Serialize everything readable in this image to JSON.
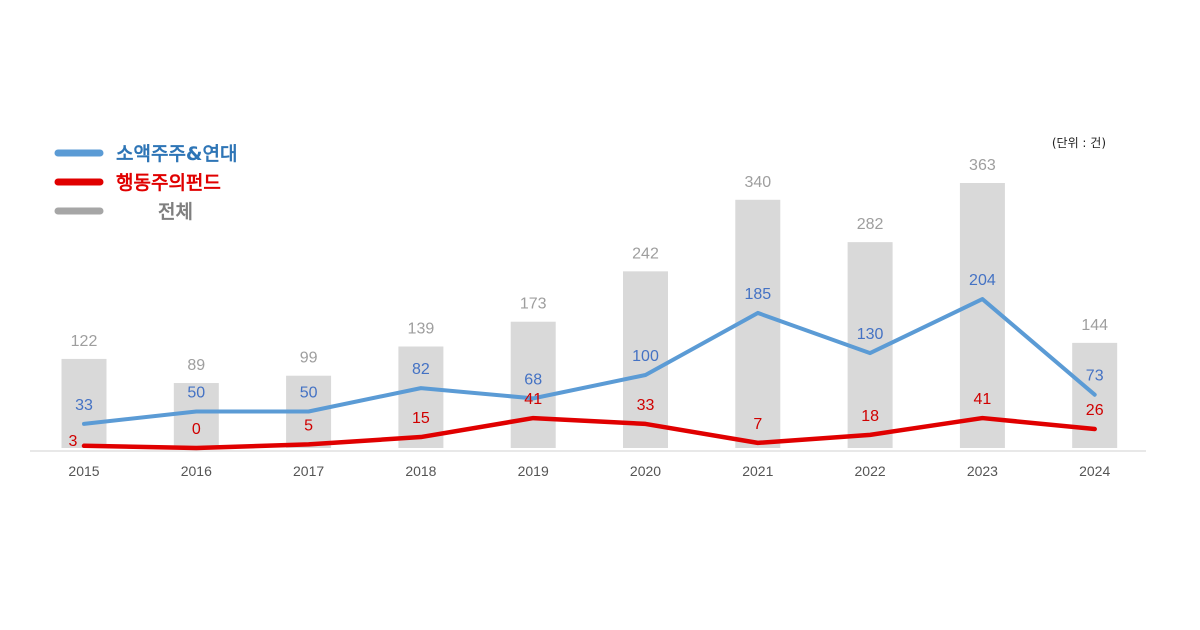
{
  "chart_data": {
    "type": "bar+line",
    "unit_label": "(단위 : 건)",
    "categories": [
      "2015",
      "2016",
      "2017",
      "2018",
      "2019",
      "2020",
      "2021",
      "2022",
      "2023",
      "2024"
    ],
    "bars": {
      "name": "전체",
      "color": "#d9d9d9",
      "label_color": "#9e9e9e",
      "values": [
        122,
        89,
        99,
        139,
        173,
        242,
        340,
        282,
        363,
        144
      ]
    },
    "series": [
      {
        "name": "소액주주&연대",
        "color": "#5b9bd5",
        "label_color": "#4472c4",
        "values": [
          33,
          50,
          50,
          82,
          68,
          100,
          185,
          130,
          204,
          73
        ]
      },
      {
        "name": "행동주의펀드",
        "color": "#e00000",
        "label_color": "#d00000",
        "values": [
          3,
          0,
          5,
          15,
          41,
          33,
          7,
          18,
          41,
          26
        ]
      }
    ],
    "legend": [
      {
        "name": "소액주주&연대",
        "color": "#5b9bd5",
        "text_color": "#2e75b6"
      },
      {
        "name": "행동주의펀드",
        "color": "#e00000",
        "text_color": "#e00000"
      },
      {
        "name": "전체",
        "color": "#a6a6a6",
        "text_color": "#7f7f7f"
      }
    ],
    "ylim": [
      0,
      363
    ],
    "grid": false,
    "legend_position": "top-left"
  }
}
